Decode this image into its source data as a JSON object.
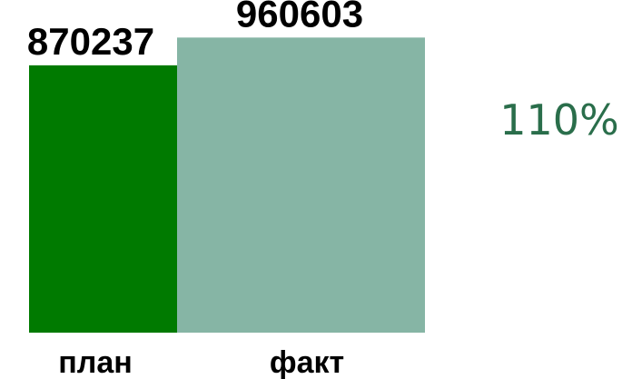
{
  "chart_data": {
    "type": "bar",
    "categories": [
      "план",
      "факт"
    ],
    "values": [
      870237,
      960603
    ],
    "value_labels": [
      "870237",
      "960603"
    ],
    "colors": [
      "#007a00",
      "#86b5a5"
    ],
    "title": "",
    "xlabel": "",
    "ylabel": "",
    "ylim": [
      0,
      1000000
    ],
    "grid": false,
    "legend": "none"
  },
  "summary": {
    "percent_text": "110%",
    "percent_color": "#2a6e4b"
  }
}
